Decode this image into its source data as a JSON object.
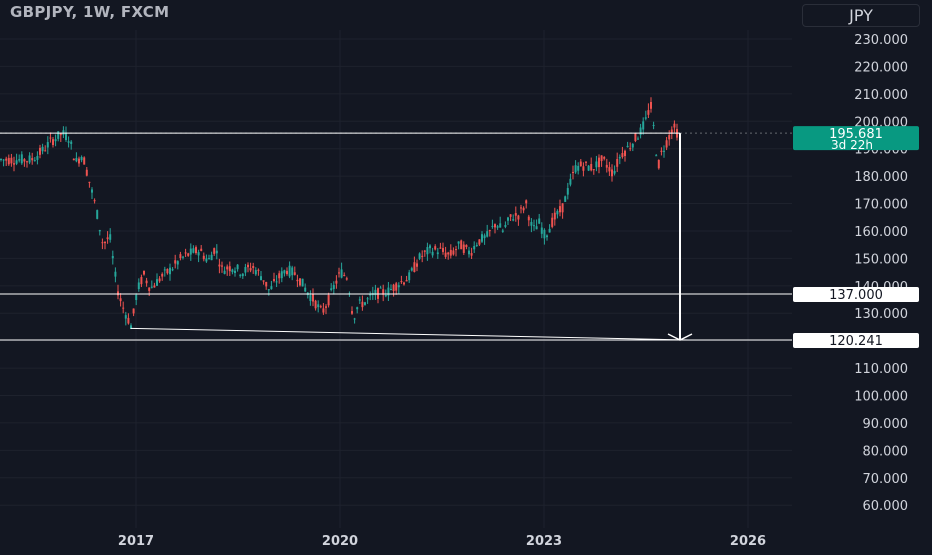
{
  "header": {
    "title": "GBPJPY, 1W, FXCM",
    "currency": "JPY"
  },
  "colors": {
    "background": "#131722",
    "grid": "#1e222d",
    "axis_text": "#d1d4dc",
    "up": "#26a69a",
    "down": "#ef5350",
    "line": "#ffffff",
    "price_label": "#089981"
  },
  "chart_data": {
    "type": "candlestick",
    "symbol": "GBPJPY",
    "timeframe": "1W",
    "exchange": "FXCM",
    "y_axis": {
      "ticks": [
        60,
        70,
        80,
        90,
        100,
        110,
        120,
        130,
        140,
        150,
        160,
        170,
        180,
        190,
        200,
        210,
        220,
        230
      ],
      "tick_labels": [
        "60.000",
        "70.000",
        "80.000",
        "90.000",
        "100.000",
        "110.000",
        "120.000",
        "130.000",
        "140.000",
        "150.000",
        "160.000",
        "170.000",
        "180.000",
        "190.000",
        "200.000",
        "210.000",
        "220.000",
        "230.000"
      ],
      "range": [
        55,
        237
      ]
    },
    "x_axis": {
      "tick_years": [
        2017,
        2020,
        2023,
        2026
      ],
      "tick_labels": [
        "2017",
        "2020",
        "2023",
        "2026"
      ],
      "range": [
        2015.45,
        2026.5
      ]
    },
    "price_series": [
      [
        2015.45,
        186
      ],
      [
        2015.6,
        189
      ],
      [
        2015.75,
        193
      ],
      [
        2015.9,
        195.5
      ],
      [
        2016.0,
        194
      ],
      [
        2016.1,
        185
      ],
      [
        2016.2,
        188
      ],
      [
        2016.3,
        178
      ],
      [
        2016.4,
        168
      ],
      [
        2016.5,
        155
      ],
      [
        2016.6,
        158
      ],
      [
        2016.7,
        140
      ],
      [
        2016.78,
        133
      ],
      [
        2016.85,
        129
      ],
      [
        2016.92,
        125
      ],
      [
        2017.0,
        138
      ],
      [
        2017.1,
        144
      ],
      [
        2017.2,
        139
      ],
      [
        2017.35,
        143
      ],
      [
        2017.5,
        146
      ],
      [
        2017.65,
        150
      ],
      [
        2017.8,
        152
      ],
      [
        2017.92,
        153
      ],
      [
        2018.05,
        149
      ],
      [
        2018.15,
        154
      ],
      [
        2018.25,
        146
      ],
      [
        2018.4,
        147
      ],
      [
        2018.55,
        145
      ],
      [
        2018.7,
        147
      ],
      [
        2018.85,
        143
      ],
      [
        2018.95,
        138
      ],
      [
        2019.05,
        142
      ],
      [
        2019.2,
        146
      ],
      [
        2019.35,
        144
      ],
      [
        2019.5,
        138
      ],
      [
        2019.62,
        134
      ],
      [
        2019.72,
        130
      ],
      [
        2019.82,
        135
      ],
      [
        2019.92,
        141
      ],
      [
        2020.0,
        145
      ],
      [
        2020.1,
        143
      ],
      [
        2020.18,
        128
      ],
      [
        2020.25,
        133
      ],
      [
        2020.35,
        134
      ],
      [
        2020.5,
        137
      ],
      [
        2020.7,
        138
      ],
      [
        2020.85,
        141
      ],
      [
        2021.0,
        143
      ],
      [
        2021.15,
        150
      ],
      [
        2021.3,
        153
      ],
      [
        2021.45,
        153
      ],
      [
        2021.6,
        151
      ],
      [
        2021.75,
        155
      ],
      [
        2021.9,
        152
      ],
      [
        2022.0,
        156
      ],
      [
        2022.15,
        158
      ],
      [
        2022.28,
        163
      ],
      [
        2022.38,
        160
      ],
      [
        2022.5,
        165
      ],
      [
        2022.62,
        166
      ],
      [
        2022.72,
        170
      ],
      [
        2022.82,
        160
      ],
      [
        2022.92,
        163
      ],
      [
        2023.0,
        158
      ],
      [
        2023.12,
        164
      ],
      [
        2023.25,
        168
      ],
      [
        2023.38,
        178
      ],
      [
        2023.45,
        183
      ],
      [
        2023.55,
        184
      ],
      [
        2023.7,
        183
      ],
      [
        2023.85,
        186
      ],
      [
        2024.0,
        181
      ],
      [
        2024.12,
        188
      ],
      [
        2024.25,
        191
      ],
      [
        2024.4,
        196
      ],
      [
        2024.5,
        201
      ],
      [
        2024.55,
        207
      ],
      [
        2024.62,
        193
      ],
      [
        2024.66,
        183
      ],
      [
        2024.72,
        189
      ],
      [
        2024.8,
        193
      ],
      [
        2024.88,
        198
      ],
      [
        2024.95,
        195.681
      ]
    ],
    "horizontal_lines": [
      {
        "value": 195.681,
        "label": "195.681"
      },
      {
        "value": 137.0,
        "label": "137.000"
      },
      {
        "value": 120.241,
        "label": "120.241"
      }
    ],
    "trendline": {
      "from": [
        2016.92,
        124.5
      ],
      "to": [
        2025.12,
        120.241
      ]
    },
    "projection_arrow": {
      "x": 2025.0,
      "from": 195.681,
      "to": 120.241
    },
    "current_price_label": {
      "price": "195.681",
      "countdown": "3d 22h"
    },
    "grid": true
  }
}
